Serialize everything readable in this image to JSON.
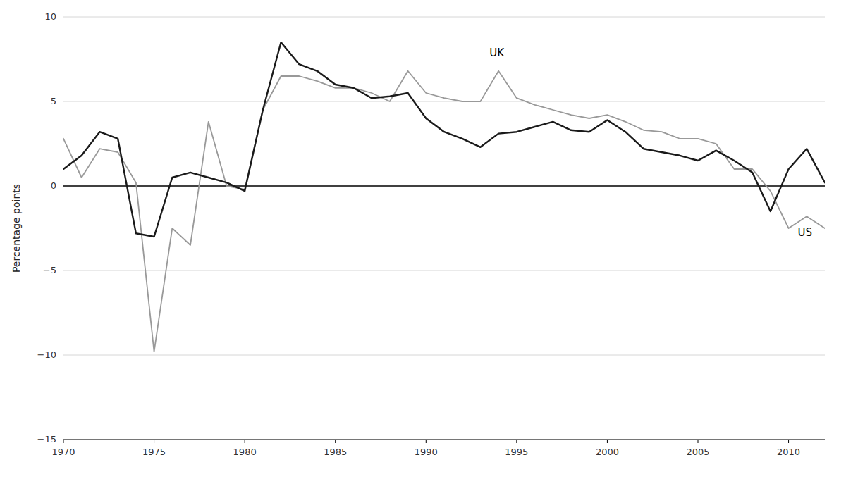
{
  "chart_data": {
    "type": "line",
    "x": [
      1970,
      1971,
      1972,
      1973,
      1974,
      1975,
      1976,
      1977,
      1978,
      1979,
      1980,
      1981,
      1982,
      1983,
      1984,
      1985,
      1986,
      1987,
      1988,
      1989,
      1990,
      1991,
      1992,
      1993,
      1994,
      1995,
      1996,
      1997,
      1998,
      1999,
      2000,
      2001,
      2002,
      2003,
      2004,
      2005,
      2006,
      2007,
      2008,
      2009,
      2010,
      2011,
      2012
    ],
    "series": [
      {
        "color": "#999999",
        "values": [
          2.8,
          0.5,
          2.2,
          2.0,
          0.2,
          -9.8,
          -2.5,
          -3.5,
          3.8,
          0.0,
          -0.2,
          4.5,
          6.5,
          6.5,
          6.2,
          5.8,
          5.8,
          5.5,
          5.0,
          6.8,
          5.5,
          5.2,
          5.0,
          5.0,
          6.8,
          5.2,
          4.8,
          4.5,
          4.2,
          4.0,
          4.2,
          3.8,
          3.3,
          3.2,
          2.8,
          2.8,
          2.5,
          1.0,
          1.0,
          -0.3,
          -2.5,
          -1.8,
          -2.5
        ]
      },
      {
        "color": "#1a1a1a",
        "values": [
          1.0,
          1.8,
          3.2,
          2.8,
          -2.8,
          -3.0,
          0.5,
          0.8,
          0.5,
          0.2,
          -0.3,
          4.5,
          8.5,
          7.2,
          6.8,
          6.0,
          5.8,
          5.2,
          5.3,
          5.5,
          4.0,
          3.2,
          2.8,
          2.3,
          3.1,
          3.2,
          3.5,
          3.8,
          3.3,
          3.2,
          3.9,
          3.2,
          2.2,
          2.0,
          1.8,
          1.5,
          2.1,
          1.5,
          0.8,
          -1.5,
          1.0,
          2.2,
          0.2
        ]
      }
    ],
    "y_label": "Percentage points",
    "annotations": [
      {
        "text": "UK",
        "x": 1993.5,
        "y": 7.5
      },
      {
        "text": "US",
        "x": 2010.5,
        "y": -2.5
      }
    ],
    "xlim": [
      1970,
      2012
    ],
    "xticks": [
      1970,
      1975,
      1980,
      1985,
      1990,
      1995,
      2000,
      2005,
      2010
    ],
    "ylim": [
      -15,
      10
    ],
    "yticks": [
      {
        "value": -15,
        "label": "−15"
      },
      {
        "value": -10,
        "label": "−10"
      },
      {
        "value": -5,
        "label": "−5"
      },
      0,
      5,
      10
    ],
    "grid": true
  }
}
